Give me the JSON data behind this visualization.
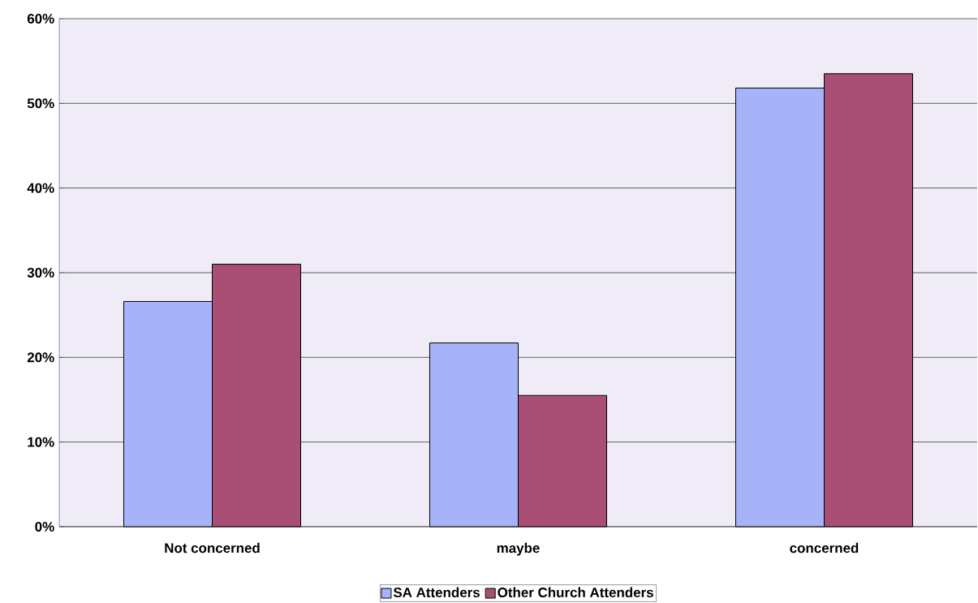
{
  "chart_data": {
    "type": "bar",
    "categories": [
      "Not concerned",
      "maybe",
      "concerned"
    ],
    "series": [
      {
        "name": "SA Attenders",
        "color": "#a6b3f8",
        "values": [
          26.6,
          21.7,
          51.8
        ]
      },
      {
        "name": "Other Church Attenders",
        "color": "#a94f75",
        "values": [
          31.0,
          15.5,
          53.5
        ]
      }
    ],
    "ylim": [
      0,
      60
    ],
    "yticks": [
      {
        "value": 0,
        "label": "0%"
      },
      {
        "value": 10,
        "label": "10%"
      },
      {
        "value": 20,
        "label": "20%"
      },
      {
        "value": 30,
        "label": "30%"
      },
      {
        "value": 40,
        "label": "40%"
      },
      {
        "value": 50,
        "label": "50%"
      },
      {
        "value": 60,
        "label": "60%"
      }
    ],
    "grid": "y",
    "legend": "bottom"
  }
}
